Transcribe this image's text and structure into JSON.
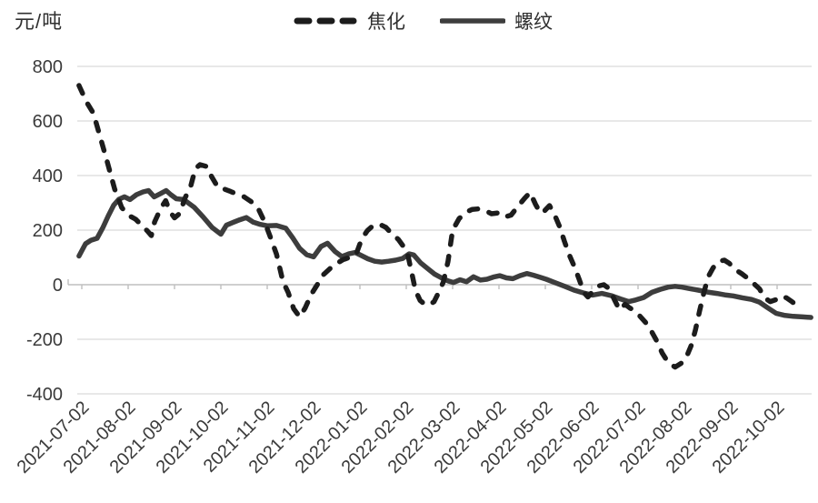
{
  "chart_data": {
    "type": "line",
    "unit_label": "元/吨",
    "ylim": [
      -400,
      800
    ],
    "y_ticks": [
      800,
      600,
      400,
      200,
      0,
      -200,
      -400
    ],
    "x_tick_labels": [
      "2021-07-02",
      "2021-08-02",
      "2021-09-02",
      "2021-10-02",
      "2021-11-02",
      "2021-12-02",
      "2022-01-02",
      "2022-02-02",
      "2022-03-02",
      "2022-04-02",
      "2022-05-02",
      "2022-06-02",
      "2022-07-02",
      "2022-08-02",
      "2022-09-02",
      "2022-10-02"
    ],
    "x_axis_note": "x = months after the 2021-07-02 tick (monthly ticks, spacing 1.0)",
    "legend_position": "top-center",
    "grid": true,
    "series": [
      {
        "name": "螺纹",
        "line_style": "solid",
        "color": "#3d3d3d",
        "points": [
          [
            -0.06,
            105
          ],
          [
            0.08,
            150
          ],
          [
            0.2,
            163
          ],
          [
            0.33,
            170
          ],
          [
            0.45,
            208
          ],
          [
            0.57,
            252
          ],
          [
            0.69,
            292
          ],
          [
            0.8,
            313
          ],
          [
            0.92,
            322
          ],
          [
            1.04,
            312
          ],
          [
            1.18,
            330
          ],
          [
            1.32,
            340
          ],
          [
            1.44,
            345
          ],
          [
            1.56,
            322
          ],
          [
            1.7,
            334
          ],
          [
            1.82,
            345
          ],
          [
            1.92,
            330
          ],
          [
            2.04,
            315
          ],
          [
            2.2,
            312
          ],
          [
            2.43,
            283
          ],
          [
            2.62,
            248
          ],
          [
            2.81,
            210
          ],
          [
            3.0,
            185
          ],
          [
            3.12,
            218
          ],
          [
            3.26,
            228
          ],
          [
            3.41,
            238
          ],
          [
            3.55,
            246
          ],
          [
            3.7,
            229
          ],
          [
            3.85,
            221
          ],
          [
            4.0,
            216
          ],
          [
            4.2,
            217
          ],
          [
            4.4,
            207
          ],
          [
            4.55,
            172
          ],
          [
            4.7,
            133
          ],
          [
            4.85,
            110
          ],
          [
            5.0,
            102
          ],
          [
            5.16,
            140
          ],
          [
            5.3,
            152
          ],
          [
            5.46,
            122
          ],
          [
            5.61,
            103
          ],
          [
            5.76,
            113
          ],
          [
            5.9,
            118
          ],
          [
            6.02,
            108
          ],
          [
            6.17,
            95
          ],
          [
            6.32,
            86
          ],
          [
            6.47,
            83
          ],
          [
            6.62,
            86
          ],
          [
            6.77,
            90
          ],
          [
            6.92,
            96
          ],
          [
            7.06,
            113
          ],
          [
            7.16,
            109
          ],
          [
            7.31,
            80
          ],
          [
            7.46,
            59
          ],
          [
            7.61,
            39
          ],
          [
            7.76,
            25
          ],
          [
            7.9,
            14
          ],
          [
            8.02,
            8
          ],
          [
            8.16,
            18
          ],
          [
            8.3,
            11
          ],
          [
            8.45,
            29
          ],
          [
            8.6,
            17
          ],
          [
            8.74,
            20
          ],
          [
            8.88,
            28
          ],
          [
            9.02,
            33
          ],
          [
            9.16,
            25
          ],
          [
            9.3,
            22
          ],
          [
            9.45,
            33
          ],
          [
            9.6,
            41
          ],
          [
            9.74,
            35
          ],
          [
            9.89,
            27
          ],
          [
            10.02,
            20
          ],
          [
            10.22,
            7
          ],
          [
            10.42,
            -6
          ],
          [
            10.62,
            -20
          ],
          [
            10.82,
            -30
          ],
          [
            11.02,
            -38
          ],
          [
            11.22,
            -32
          ],
          [
            11.42,
            -40
          ],
          [
            11.62,
            -52
          ],
          [
            11.8,
            -62
          ],
          [
            11.95,
            -56
          ],
          [
            12.12,
            -47
          ],
          [
            12.3,
            -28
          ],
          [
            12.48,
            -17
          ],
          [
            12.65,
            -9
          ],
          [
            12.8,
            -6
          ],
          [
            12.95,
            -9
          ],
          [
            13.1,
            -14
          ],
          [
            13.3,
            -20
          ],
          [
            13.5,
            -27
          ],
          [
            13.7,
            -32
          ],
          [
            13.9,
            -38
          ],
          [
            14.05,
            -41
          ],
          [
            14.25,
            -48
          ],
          [
            14.45,
            -54
          ],
          [
            14.62,
            -64
          ],
          [
            14.8,
            -85
          ],
          [
            14.98,
            -105
          ],
          [
            15.15,
            -112
          ],
          [
            15.35,
            -116
          ],
          [
            15.55,
            -118
          ],
          [
            15.73,
            -120
          ]
        ]
      },
      {
        "name": "焦化",
        "line_style": "dashed",
        "color": "#1c1c1c",
        "points": [
          [
            -0.06,
            730
          ],
          [
            0.1,
            670
          ],
          [
            0.25,
            628
          ],
          [
            0.39,
            545
          ],
          [
            0.55,
            450
          ],
          [
            0.71,
            350
          ],
          [
            0.86,
            283
          ],
          [
            1.0,
            255
          ],
          [
            1.16,
            240
          ],
          [
            1.29,
            218
          ],
          [
            1.42,
            196
          ],
          [
            1.5,
            180
          ],
          [
            1.57,
            230
          ],
          [
            1.71,
            282
          ],
          [
            1.81,
            308
          ],
          [
            1.9,
            268
          ],
          [
            2.0,
            245
          ],
          [
            2.12,
            262
          ],
          [
            2.22,
            315
          ],
          [
            2.35,
            362
          ],
          [
            2.45,
            425
          ],
          [
            2.55,
            440
          ],
          [
            2.7,
            433
          ],
          [
            2.8,
            396
          ],
          [
            2.94,
            356
          ],
          [
            3.08,
            350
          ],
          [
            3.22,
            341
          ],
          [
            3.35,
            331
          ],
          [
            3.5,
            322
          ],
          [
            3.65,
            305
          ],
          [
            3.8,
            281
          ],
          [
            3.94,
            232
          ],
          [
            4.06,
            178
          ],
          [
            4.2,
            112
          ],
          [
            4.34,
            12
          ],
          [
            4.45,
            -28
          ],
          [
            4.57,
            -88
          ],
          [
            4.7,
            -118
          ],
          [
            4.82,
            -85
          ],
          [
            4.95,
            -35
          ],
          [
            5.08,
            0
          ],
          [
            5.22,
            38
          ],
          [
            5.36,
            60
          ],
          [
            5.5,
            78
          ],
          [
            5.64,
            92
          ],
          [
            5.78,
            100
          ],
          [
            5.92,
            112
          ],
          [
            6.04,
            168
          ],
          [
            6.16,
            198
          ],
          [
            6.28,
            216
          ],
          [
            6.42,
            222
          ],
          [
            6.56,
            210
          ],
          [
            6.7,
            184
          ],
          [
            6.83,
            166
          ],
          [
            6.95,
            138
          ],
          [
            7.04,
            105
          ],
          [
            7.12,
            42
          ],
          [
            7.2,
            -22
          ],
          [
            7.3,
            -58
          ],
          [
            7.4,
            -72
          ],
          [
            7.5,
            -74
          ],
          [
            7.6,
            -62
          ],
          [
            7.7,
            -28
          ],
          [
            7.8,
            10
          ],
          [
            7.9,
            85
          ],
          [
            8.0,
            200
          ],
          [
            8.14,
            242
          ],
          [
            8.28,
            265
          ],
          [
            8.42,
            276
          ],
          [
            8.56,
            278
          ],
          [
            8.7,
            272
          ],
          [
            8.84,
            260
          ],
          [
            8.98,
            263
          ],
          [
            9.12,
            248
          ],
          [
            9.26,
            255
          ],
          [
            9.41,
            287
          ],
          [
            9.55,
            316
          ],
          [
            9.67,
            338
          ],
          [
            9.79,
            294
          ],
          [
            9.89,
            263
          ],
          [
            9.99,
            272
          ],
          [
            10.09,
            290
          ],
          [
            10.21,
            252
          ],
          [
            10.31,
            212
          ],
          [
            10.41,
            160
          ],
          [
            10.52,
            108
          ],
          [
            10.63,
            65
          ],
          [
            10.73,
            20
          ],
          [
            10.83,
            -28
          ],
          [
            10.92,
            -45
          ],
          [
            11.02,
            -25
          ],
          [
            11.14,
            -5
          ],
          [
            11.26,
            0
          ],
          [
            11.38,
            -15
          ],
          [
            11.49,
            -55
          ],
          [
            11.6,
            -92
          ],
          [
            11.72,
            -72
          ],
          [
            11.82,
            -85
          ],
          [
            11.92,
            -95
          ],
          [
            12.04,
            -115
          ],
          [
            12.16,
            -138
          ],
          [
            12.28,
            -168
          ],
          [
            12.4,
            -205
          ],
          [
            12.52,
            -250
          ],
          [
            12.65,
            -285
          ],
          [
            12.8,
            -302
          ],
          [
            12.93,
            -288
          ],
          [
            13.05,
            -262
          ],
          [
            13.15,
            -222
          ],
          [
            13.24,
            -165
          ],
          [
            13.33,
            -95
          ],
          [
            13.42,
            -30
          ],
          [
            13.51,
            28
          ],
          [
            13.62,
            62
          ],
          [
            13.74,
            85
          ],
          [
            13.86,
            90
          ],
          [
            13.97,
            78
          ],
          [
            14.1,
            55
          ],
          [
            14.24,
            40
          ],
          [
            14.38,
            22
          ],
          [
            14.51,
            2
          ],
          [
            14.62,
            -15
          ],
          [
            14.73,
            -48
          ],
          [
            14.85,
            -62
          ],
          [
            14.97,
            -55
          ],
          [
            15.08,
            -42
          ],
          [
            15.2,
            -48
          ],
          [
            15.32,
            -62
          ],
          [
            15.44,
            -78
          ],
          [
            15.53,
            -90
          ]
        ]
      }
    ]
  },
  "colors": {
    "background": "#ffffff",
    "gridline": "#d9d9d9",
    "axis": "#bfbfbf",
    "text": "#3a3a3a",
    "dashed_series": "#1c1c1c",
    "solid_series": "#3d3d3d"
  }
}
